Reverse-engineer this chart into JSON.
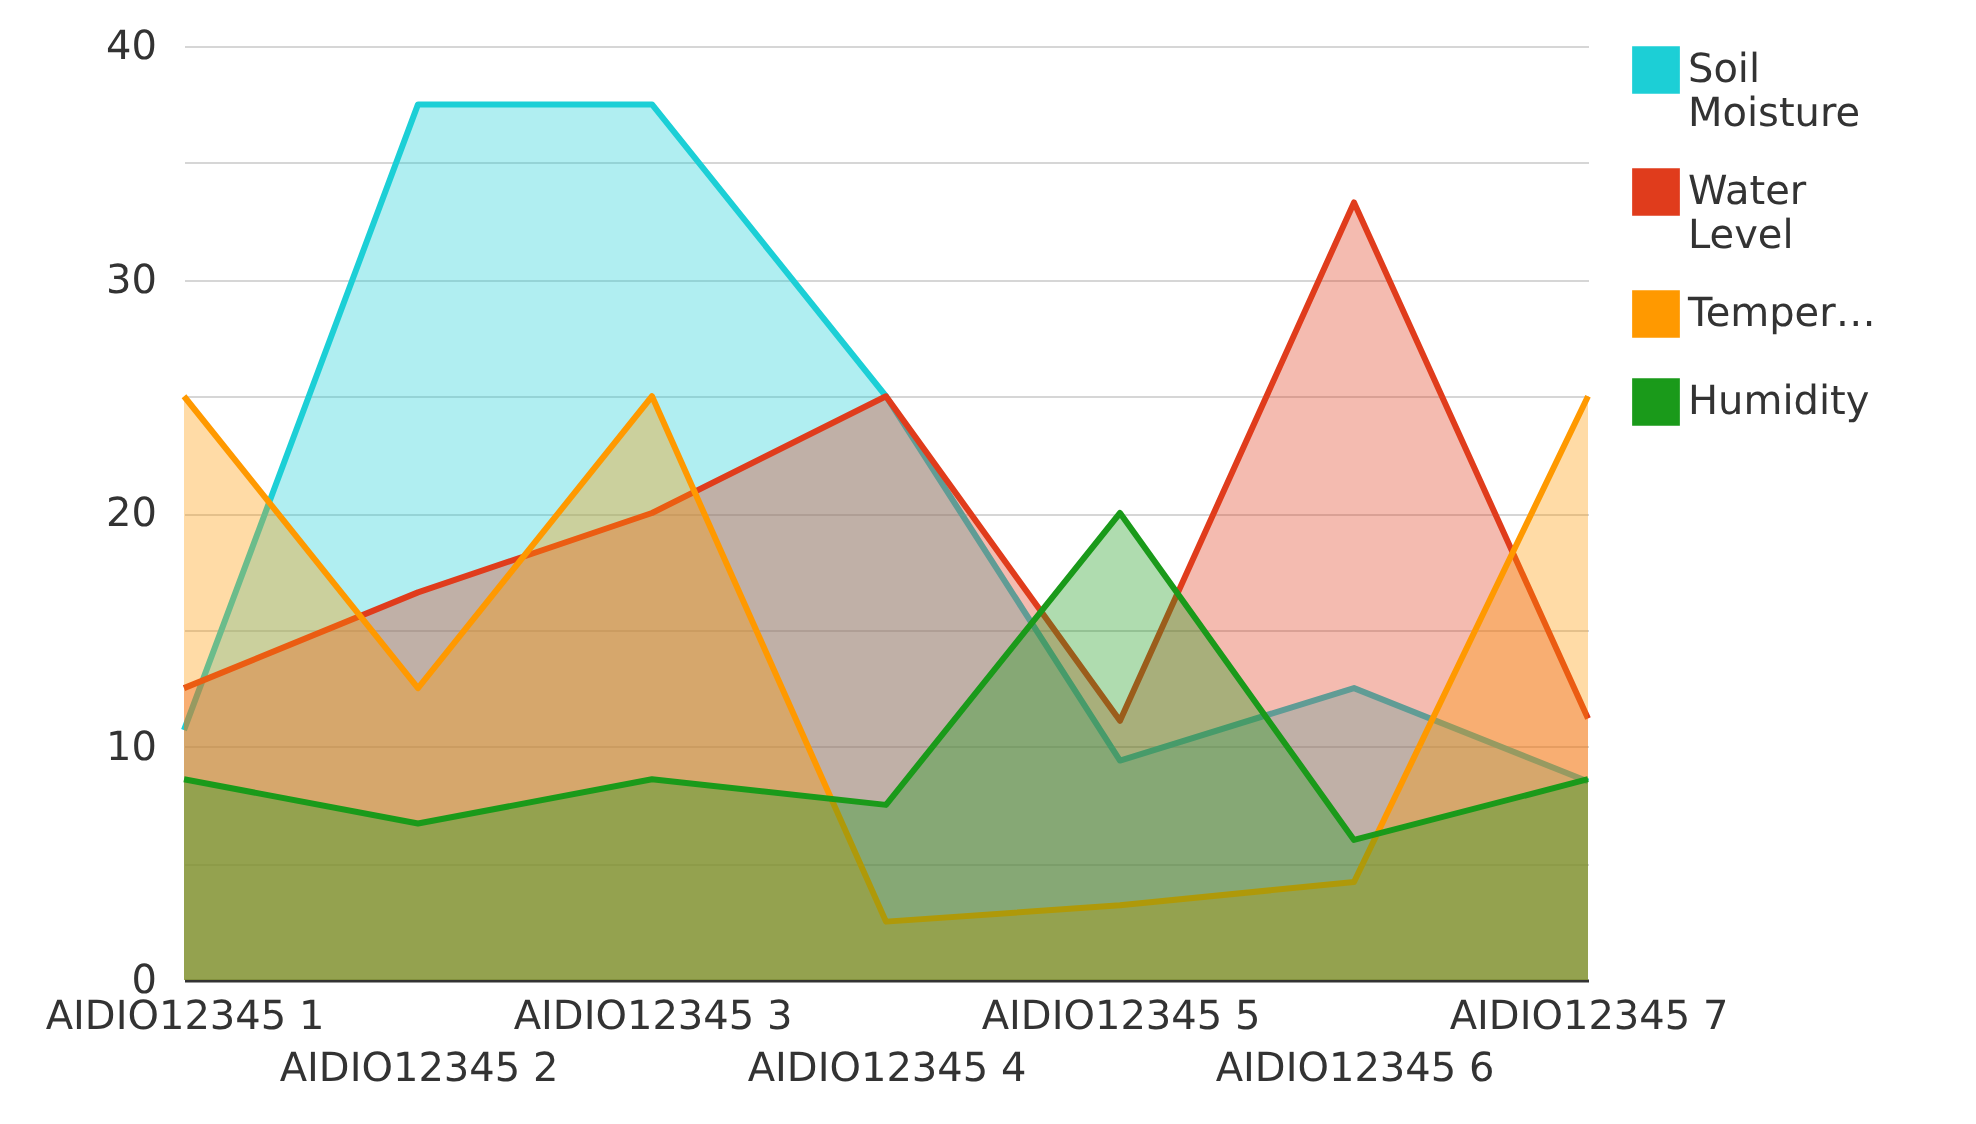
{
  "chart_data": {
    "type": "area",
    "categories": [
      "AIDIO12345 1",
      "AIDIO12345 2",
      "AIDIO12345 3",
      "AIDIO12345 4",
      "AIDIO12345 5",
      "AIDIO12345 6",
      "AIDIO12345 7"
    ],
    "series": [
      {
        "name": "Soil Moisture",
        "color": "#1ccfd6",
        "values": [
          10.7,
          37.5,
          37.5,
          25,
          9.4,
          12.5,
          8.5
        ]
      },
      {
        "name": "Water Level",
        "color": "#e03c1c",
        "values": [
          12.5,
          16.6,
          20,
          25,
          11.1,
          33.3,
          11.2
        ]
      },
      {
        "name": "Temper…",
        "color": "#ff9900",
        "values": [
          25,
          12.5,
          25,
          2.5,
          3.2,
          4.2,
          25
        ]
      },
      {
        "name": "Humidity",
        "color": "#1a9a1a",
        "values": [
          8.6,
          6.7,
          8.6,
          7.5,
          20,
          6,
          8.6
        ]
      }
    ],
    "ylim": [
      0,
      40
    ],
    "yticks": [
      0,
      {
        "value": 5,
        "label": null
      },
      10,
      {
        "value": 15,
        "label": null
      },
      20,
      {
        "value": 25,
        "label": null
      },
      30,
      {
        "value": 35,
        "label": null
      },
      40
    ],
    "grid": "y",
    "legend": "top right"
  }
}
